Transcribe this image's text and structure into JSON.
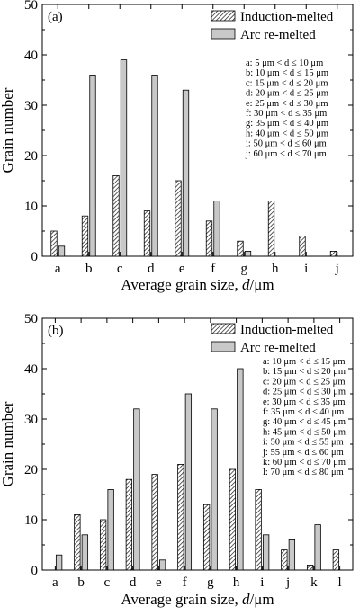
{
  "chart_data": [
    {
      "type": "bar",
      "panel_label": "(a)",
      "xlabel_prefix": "Average grain size, ",
      "xlabel_var": "d",
      "xlabel_suffix": "/μm",
      "ylabel": "Grain number",
      "ylim": [
        0,
        50
      ],
      "yticks": [
        0,
        10,
        20,
        30,
        40,
        50
      ],
      "categories": [
        "a",
        "b",
        "c",
        "d",
        "e",
        "f",
        "g",
        "h",
        "i",
        "j"
      ],
      "series": [
        {
          "name": "Induction-melted",
          "values": [
            5,
            8,
            16,
            9,
            15,
            7,
            3,
            11,
            4,
            1
          ],
          "pattern": "hatch"
        },
        {
          "name": "Arc re-melted",
          "values": [
            2,
            36,
            39,
            36,
            33,
            11,
            1,
            0,
            0,
            0
          ],
          "pattern": "gray"
        }
      ],
      "legend_position": "top-right",
      "key": [
        "a: 5 μm < d ≤ 10 μm",
        "b: 10 μm < d ≤ 15 μm",
        "c: 15 μm < d ≤ 20 μm",
        "d: 20 μm < d ≤ 25 μm",
        "e: 25 μm < d ≤ 30 μm",
        "f: 30 μm < d ≤ 35 μm",
        "g: 35 μm < d ≤ 40 μm",
        "h: 40 μm < d ≤ 50 μm",
        "i: 50 μm < d ≤ 60 μm",
        "j: 60 μm < d ≤ 70 μm"
      ]
    },
    {
      "type": "bar",
      "panel_label": "(b)",
      "xlabel_prefix": "Average grain size, ",
      "xlabel_var": "d",
      "xlabel_suffix": "/μm",
      "ylabel": "Grain number",
      "ylim": [
        0,
        50
      ],
      "yticks": [
        0,
        10,
        20,
        30,
        40,
        50
      ],
      "categories": [
        "a",
        "b",
        "c",
        "d",
        "e",
        "f",
        "g",
        "h",
        "i",
        "j",
        "k",
        "l"
      ],
      "series": [
        {
          "name": "Induction-melted",
          "values": [
            0,
            11,
            10,
            18,
            19,
            21,
            13,
            20,
            16,
            4,
            1,
            4
          ],
          "pattern": "hatch"
        },
        {
          "name": "Arc re-melted",
          "values": [
            3,
            7,
            16,
            32,
            2,
            35,
            32,
            40,
            7,
            6,
            9,
            0
          ],
          "pattern": "gray"
        }
      ],
      "legend_position": "top-right",
      "key": [
        "a: 10 μm < d ≤ 15 μm",
        "b: 15 μm < d ≤ 20 μm",
        "c: 20 μm < d ≤ 25 μm",
        "d: 25 μm < d ≤ 30 μm",
        "e: 30 μm < d ≤ 35 μm",
        "f: 35 μm < d ≤ 40 μm",
        "g: 40 μm < d ≤ 45 μm",
        "h: 45 μm < d ≤ 50 μm",
        "i: 50 μm < d ≤ 55 μm",
        "j: 55 μm < d ≤ 60 μm",
        "k: 60 μm < d ≤ 70 μm",
        "l: 70 μm < d ≤ 80 μm"
      ]
    }
  ],
  "colors": {
    "hatch_fill": "#ffffff",
    "hatch_line": "#333333",
    "gray_fill": "#c8c8c8",
    "outline": "#000000"
  }
}
